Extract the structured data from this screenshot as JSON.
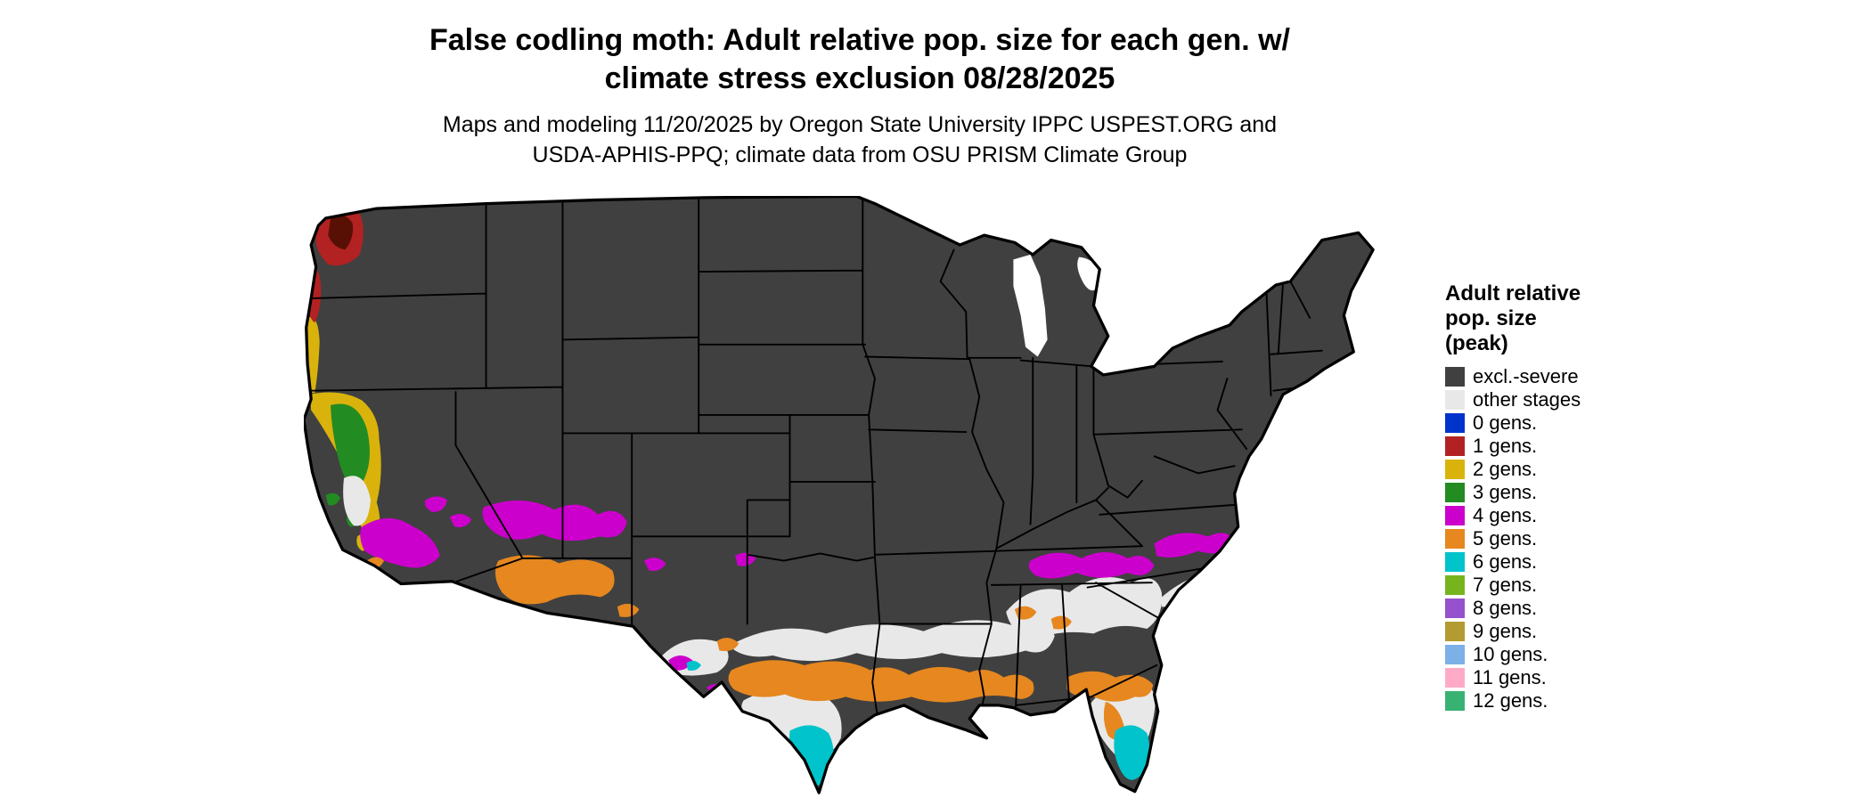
{
  "header": {
    "title_lines": [
      "False codling moth: Adult relative pop. size for each gen. w/",
      "climate stress exclusion 08/28/2025"
    ],
    "subtitle_lines": [
      "Maps and modeling 11/20/2025 by Oregon State University IPPC USPEST.ORG and",
      "USDA-APHIS-PPQ; climate data from OSU PRISM Climate Group"
    ]
  },
  "legend": {
    "title_lines": [
      "Adult relative",
      "pop. size",
      "(peak)"
    ],
    "items": [
      {
        "label": "excl.-severe",
        "color_key": "excl_severe"
      },
      {
        "label": "other stages",
        "color_key": "other_stages"
      },
      {
        "label": "0 gens.",
        "color_key": "gen0"
      },
      {
        "label": "1 gens.",
        "color_key": "gen1"
      },
      {
        "label": "2 gens.",
        "color_key": "gen2"
      },
      {
        "label": "3 gens.",
        "color_key": "gen3"
      },
      {
        "label": "4 gens.",
        "color_key": "gen4"
      },
      {
        "label": "5 gens.",
        "color_key": "gen5"
      },
      {
        "label": "6 gens.",
        "color_key": "gen6"
      },
      {
        "label": "7 gens.",
        "color_key": "gen7"
      },
      {
        "label": "8 gens.",
        "color_key": "gen8"
      },
      {
        "label": "9 gens.",
        "color_key": "gen9"
      },
      {
        "label": "10 gens.",
        "color_key": "gen10"
      },
      {
        "label": "11 gens.",
        "color_key": "gen11"
      },
      {
        "label": "12 gens.",
        "color_key": "gen12"
      }
    ]
  },
  "palette": {
    "excl_severe": "#404040",
    "other_stages": "#e8e8e8",
    "gen0": "#0033cc",
    "gen1": "#b22222",
    "gen1_dark": "#581005",
    "gen2": "#d9b30b",
    "gen3": "#228b22",
    "gen4": "#cc00cc",
    "gen5": "#e6871f",
    "gen6": "#00c3cb",
    "gen7": "#76b41e",
    "gen8": "#9651cc",
    "gen9": "#b29b30",
    "gen10": "#7cb0e6",
    "gen11": "#ffaac6",
    "gen12": "#38b273",
    "water": "#ffffff",
    "border": "#000000"
  },
  "map": {
    "region": "Contiguous United States"
  }
}
